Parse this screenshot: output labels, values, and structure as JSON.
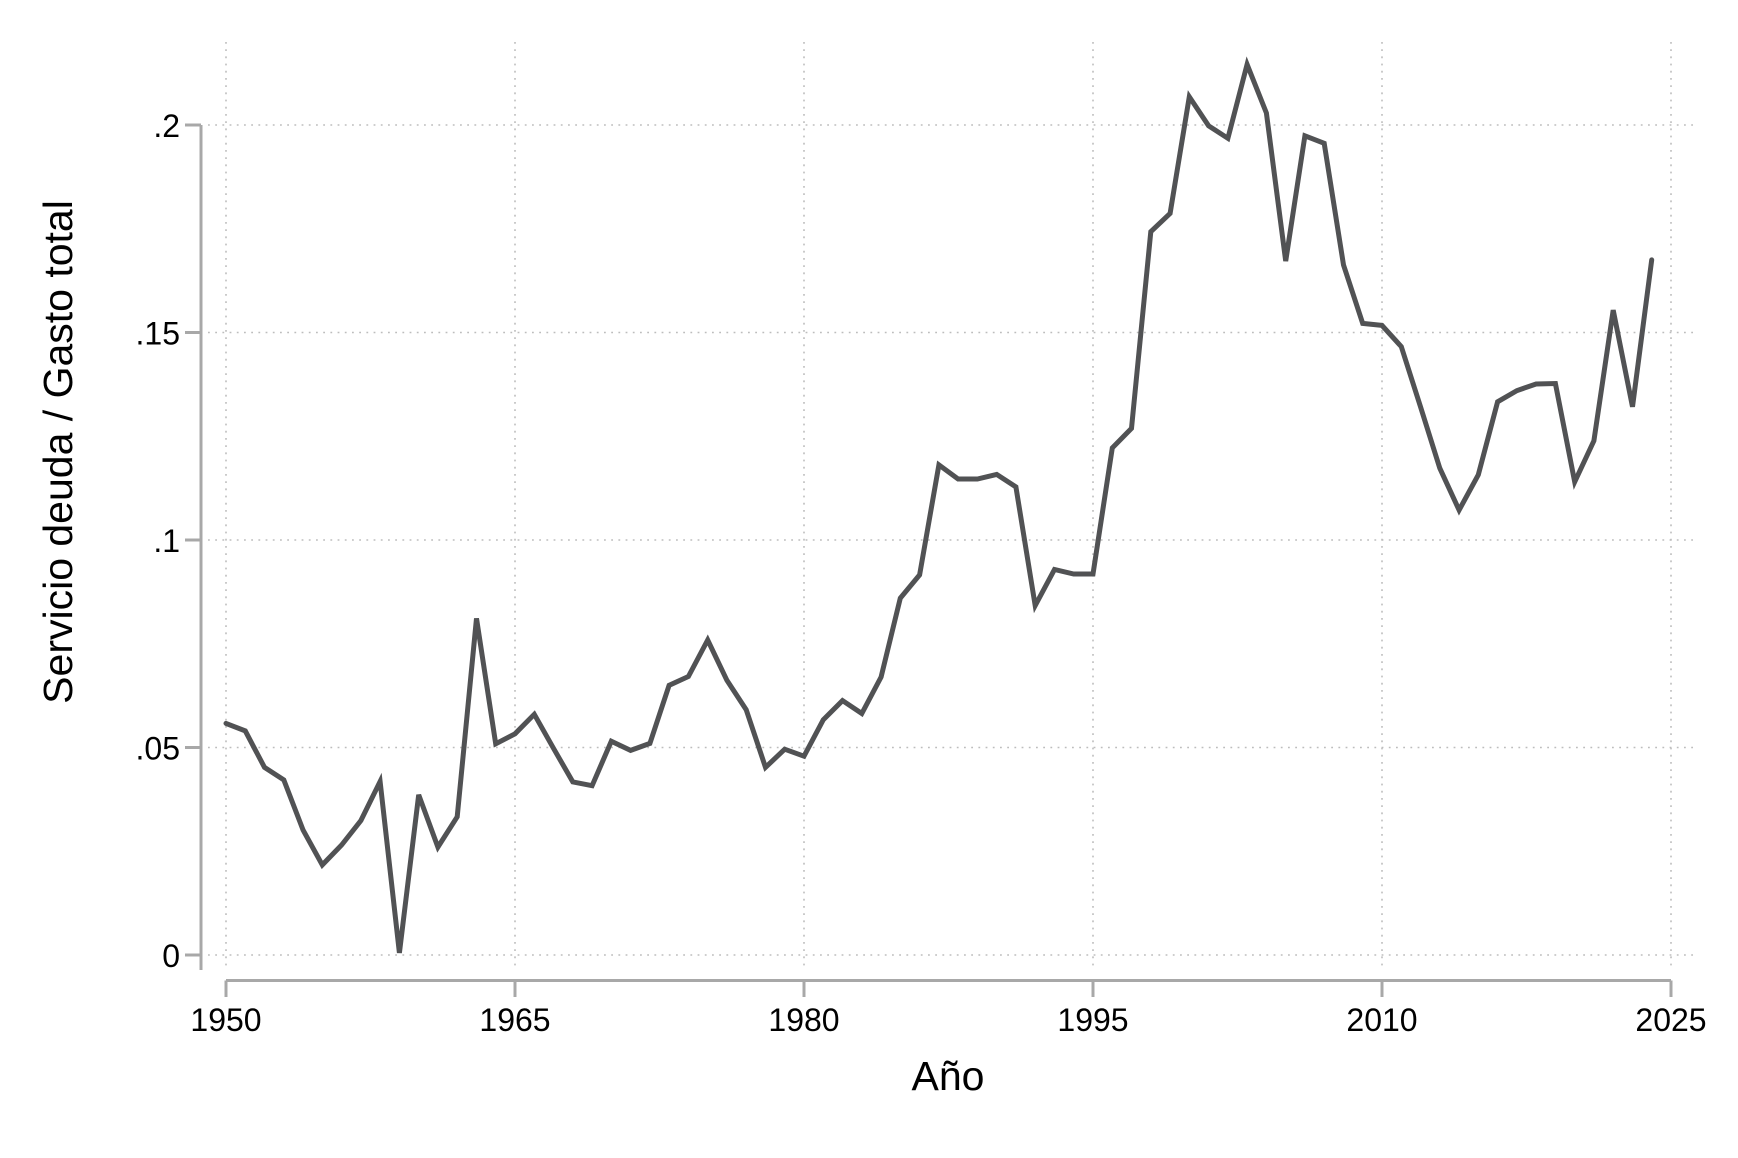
{
  "chart_data": {
    "type": "line",
    "title": "",
    "xlabel": "Año",
    "ylabel": "Servicio deuda / Gasto total",
    "legend": null,
    "grid": "dotted-both",
    "x_ticks": {
      "values": [
        1950,
        1965,
        1980,
        1995,
        2010,
        2025
      ],
      "labels": [
        "1950",
        "1965",
        "1980",
        "1995",
        "2010",
        "2025"
      ]
    },
    "y_ticks": {
      "values": [
        0,
        0.05,
        0.1,
        0.15,
        0.2
      ],
      "labels": [
        "0",
        ".05",
        ".1",
        ".15",
        ".2"
      ]
    },
    "xlim": [
      1950,
      2025
    ],
    "ylim": [
      0,
      0.22
    ],
    "series": [
      {
        "name": "Servicio deuda / Gasto total",
        "years": [
          1950,
          1951,
          1952,
          1953,
          1954,
          1955,
          1956,
          1957,
          1958,
          1959,
          1960,
          1961,
          1962,
          1963,
          1964,
          1965,
          1966,
          1967,
          1968,
          1969,
          1970,
          1971,
          1972,
          1973,
          1974,
          1975,
          1976,
          1977,
          1978,
          1979,
          1980,
          1981,
          1982,
          1983,
          1984,
          1985,
          1986,
          1987,
          1988,
          1989,
          1990,
          1991,
          1992,
          1993,
          1994,
          1995,
          1996,
          1997,
          1998,
          1999,
          2000,
          2001,
          2002,
          2003,
          2004,
          2005,
          2006,
          2007,
          2008,
          2009,
          2010,
          2011,
          2012,
          2013,
          2014,
          2015,
          2016,
          2017,
          2018,
          2019,
          2020,
          2021,
          2022,
          2023,
          2024
        ],
        "values": [
          0.0558,
          0.054,
          0.0452,
          0.0422,
          0.0301,
          0.0217,
          0.0265,
          0.0324,
          0.0418,
          0.0005,
          0.0386,
          0.026,
          0.0333,
          0.0811,
          0.0509,
          0.0533,
          0.058,
          0.0498,
          0.0417,
          0.0408,
          0.0515,
          0.0493,
          0.051,
          0.065,
          0.0671,
          0.0759,
          0.0662,
          0.0591,
          0.0452,
          0.0496,
          0.0479,
          0.0567,
          0.0613,
          0.0582,
          0.067,
          0.086,
          0.0916,
          0.1181,
          0.1147,
          0.1147,
          0.1158,
          0.1128,
          0.0842,
          0.0929,
          0.0918,
          0.0918,
          0.1222,
          0.1269,
          0.1743,
          0.1787,
          0.2068,
          0.1998,
          0.1968,
          0.2146,
          0.2029,
          0.1672,
          0.1974,
          0.1956,
          0.1663,
          0.1522,
          0.1517,
          0.1466,
          0.1321,
          0.1173,
          0.1072,
          0.1157,
          0.1333,
          0.136,
          0.1376,
          0.1377,
          0.114,
          0.1239,
          0.1554,
          0.1321,
          0.1675
        ]
      }
    ],
    "colors": {
      "line": "#515254",
      "axis": "#a8a8a8",
      "grid": "#bdbdbd",
      "text": "#000000",
      "background": "#ffffff"
    }
  }
}
